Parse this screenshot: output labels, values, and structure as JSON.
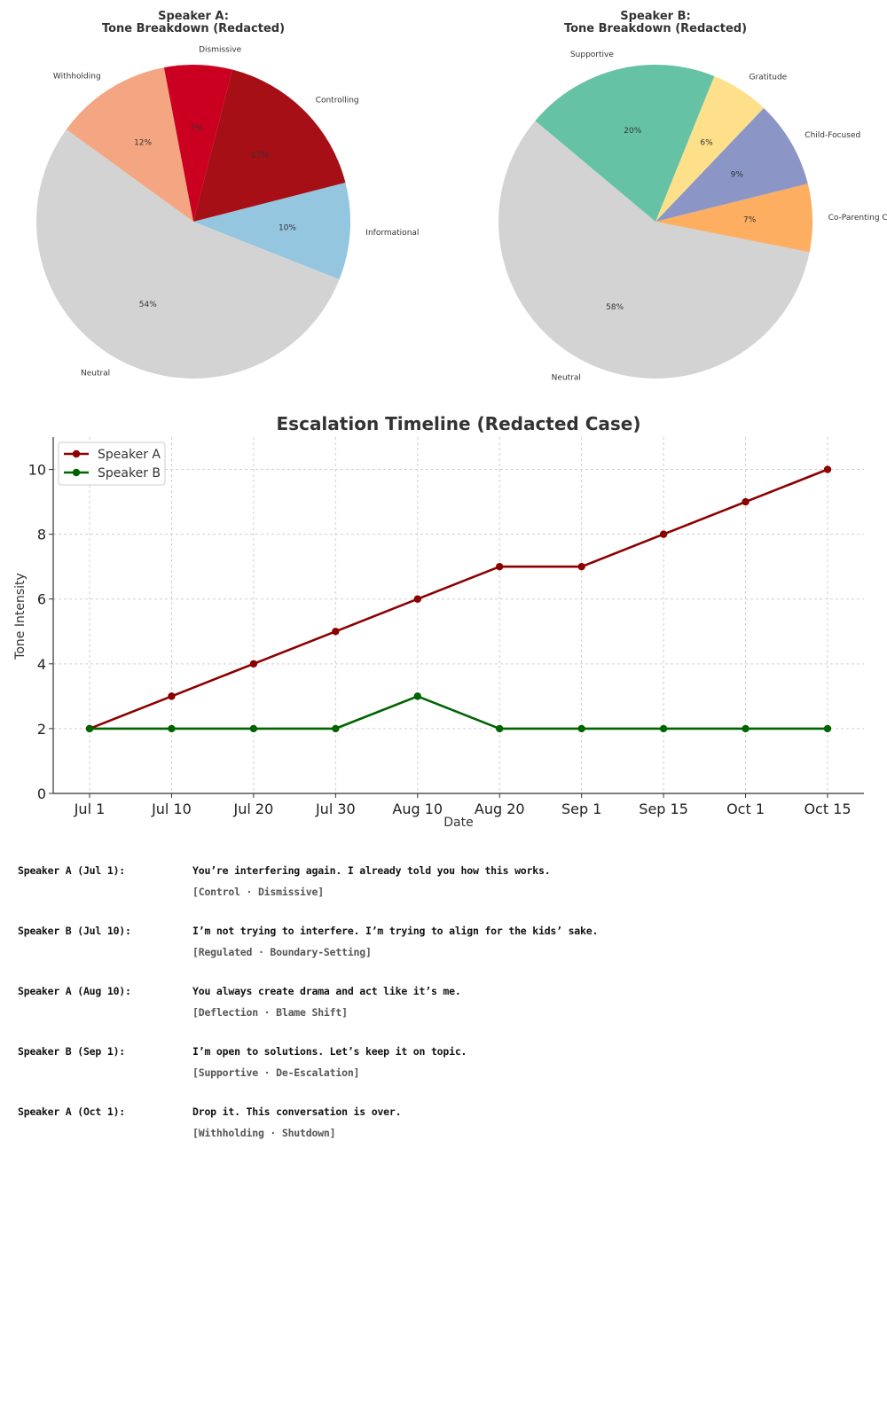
{
  "chart_data": [
    {
      "type": "pie",
      "title": "Speaker A:",
      "subtitle": "Tone Breakdown (Redacted)",
      "slices": [
        {
          "label": "Neutral",
          "value": 54,
          "pct_label": "54%",
          "color": "#d3d3d3"
        },
        {
          "label": "Informational",
          "value": 10,
          "pct_label": "10%",
          "color": "#94c6df"
        },
        {
          "label": "Controlling",
          "value": 17,
          "pct_label": "17%",
          "color": "#a50f15"
        },
        {
          "label": "Dismissive",
          "value": 7,
          "pct_label": "7%",
          "color": "#cb0020"
        },
        {
          "label": "Withholding",
          "value": 12,
          "pct_label": "12%",
          "color": "#f4a582"
        }
      ]
    },
    {
      "type": "pie",
      "title": "Speaker B:",
      "subtitle": "Tone Breakdown (Redacted)",
      "slices": [
        {
          "label": "Neutral",
          "value": 58,
          "pct_label": "58%",
          "color": "#d3d3d3"
        },
        {
          "label": "Co-Parenting Coordination",
          "value": 7,
          "pct_label": "7%",
          "color": "#fdae61"
        },
        {
          "label": "Child-Focused",
          "value": 9,
          "pct_label": "9%",
          "color": "#8c96c6"
        },
        {
          "label": "Gratitude",
          "value": 6,
          "pct_label": "6%",
          "color": "#fee08b"
        },
        {
          "label": "Supportive",
          "value": 20,
          "pct_label": "20%",
          "color": "#66c2a5"
        }
      ]
    },
    {
      "type": "line",
      "title": "Escalation Timeline (Redacted Case)",
      "xlabel": "Date",
      "ylabel": "Tone Intensity",
      "categories": [
        "Jul 1",
        "Jul 10",
        "Jul 20",
        "Jul 30",
        "Aug 10",
        "Aug 20",
        "Sep 1",
        "Sep 15",
        "Oct 1",
        "Oct 15"
      ],
      "ylim": [
        0,
        11
      ],
      "yticks": [
        0,
        2,
        4,
        6,
        8,
        10
      ],
      "grid": true,
      "legend": "top-left",
      "series": [
        {
          "name": "Speaker A",
          "color": "#8b0000",
          "values": [
            2,
            3,
            4,
            5,
            6,
            7,
            7,
            8,
            9,
            10
          ]
        },
        {
          "name": "Speaker B",
          "color": "#006400",
          "values": [
            2,
            2,
            2,
            2,
            3,
            2,
            2,
            2,
            2,
            2
          ]
        }
      ]
    }
  ],
  "dialogue": [
    {
      "speaker": "Speaker A (Jul 1):",
      "quote": "You’re interfering again. I already told you how this works.",
      "tags": "[Control · Dismissive]"
    },
    {
      "speaker": "Speaker B (Jul 10):",
      "quote": "I’m not trying to interfere. I’m trying to align for the kids’ sake.",
      "tags": "[Regulated · Boundary-Setting]"
    },
    {
      "speaker": "Speaker A (Aug 10):",
      "quote": "You always create drama and act like it’s me.",
      "tags": "[Deflection · Blame Shift]"
    },
    {
      "speaker": "Speaker B (Sep 1):",
      "quote": "I’m open to solutions. Let’s keep it on topic.",
      "tags": "[Supportive · De-Escalation]"
    },
    {
      "speaker": "Speaker A (Oct 1):",
      "quote": "Drop it. This conversation is over.",
      "tags": "[Withholding · Shutdown]"
    }
  ]
}
